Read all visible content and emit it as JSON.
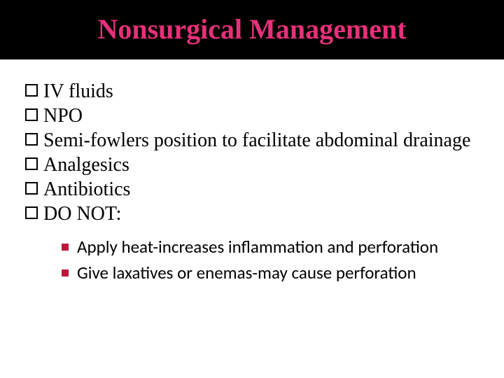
{
  "title": "Nonsurgical Management",
  "title_color": "#e6307a",
  "title_bg": "#000000",
  "title_fontsize": 40,
  "body_fontsize": 28,
  "sub_fontsize": 25,
  "bullet_border_color": "#000000",
  "sub_bullet_color": "#c0143c",
  "background_color": "#ffffff",
  "items": [
    "IV fluids",
    "NPO",
    "Semi-fowlers position to facilitate abdominal drainage",
    "Analgesics",
    "Antibiotics",
    "DO NOT:"
  ],
  "sub_items": [
    "Apply heat-increases inflammation and perforation",
    "Give laxatives or enemas-may cause perforation"
  ]
}
